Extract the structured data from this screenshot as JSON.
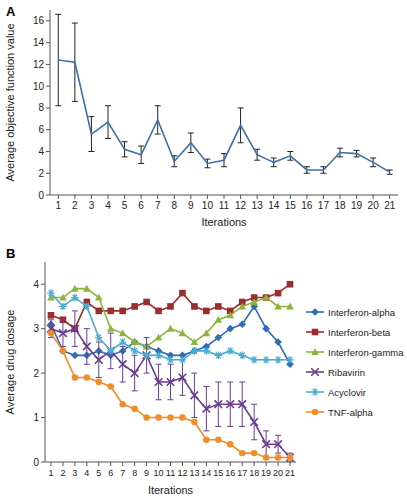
{
  "chart_data": [
    {
      "type": "line",
      "title": "A",
      "x_label": "Iterations",
      "y_label": "Average objective function value",
      "x": [
        1,
        2,
        3,
        4,
        5,
        6,
        7,
        8,
        9,
        10,
        11,
        12,
        13,
        14,
        15,
        16,
        17,
        18,
        19,
        20,
        21
      ],
      "values": [
        12.4,
        12.2,
        5.6,
        6.7,
        4.2,
        3.7,
        6.9,
        3.1,
        4.8,
        2.9,
        3.2,
        6.4,
        3.7,
        3.0,
        3.6,
        2.3,
        2.3,
        3.9,
        3.8,
        3.0,
        2.1
      ],
      "errors": [
        4.2,
        3.6,
        1.6,
        1.5,
        0.7,
        0.8,
        1.3,
        0.5,
        0.9,
        0.4,
        0.6,
        1.6,
        0.5,
        0.4,
        0.4,
        0.3,
        0.3,
        0.4,
        0.3,
        0.4,
        0.2
      ],
      "color": "#3a6fb0",
      "xlim": [
        0.5,
        21.5
      ],
      "xticks": [
        1,
        2,
        3,
        4,
        5,
        6,
        7,
        8,
        9,
        10,
        11,
        12,
        13,
        14,
        15,
        16,
        17,
        18,
        19,
        20,
        21
      ],
      "ylim": [
        0,
        17
      ],
      "yticks": [
        0,
        2,
        4,
        6,
        8,
        10,
        12,
        14,
        16
      ],
      "grid": false
    },
    {
      "type": "line",
      "title": "B",
      "x_label": "Iterations",
      "y_label": "Average drug dosage",
      "x": [
        1,
        2,
        3,
        4,
        5,
        6,
        7,
        8,
        9,
        10,
        11,
        12,
        13,
        14,
        15,
        16,
        17,
        18,
        19,
        20,
        21
      ],
      "series": [
        {
          "name": "Interferon-alpha",
          "color": "#2e6db4",
          "marker": "diamond",
          "values": [
            3.1,
            2.5,
            2.4,
            2.4,
            2.5,
            2.4,
            2.5,
            2.7,
            2.6,
            2.5,
            2.4,
            2.4,
            2.5,
            2.6,
            2.8,
            3.0,
            3.1,
            3.5,
            3.0,
            2.7,
            2.2
          ]
        },
        {
          "name": "Interferon-beta",
          "color": "#9b2d2d",
          "marker": "square",
          "values": [
            3.3,
            3.2,
            3.0,
            3.6,
            3.4,
            3.4,
            3.4,
            3.5,
            3.6,
            3.4,
            3.5,
            3.8,
            3.5,
            3.4,
            3.5,
            3.4,
            3.6,
            3.7,
            3.7,
            3.8,
            4.0
          ]
        },
        {
          "name": "Interferon-gamma",
          "color": "#8db43c",
          "marker": "triangle",
          "values": [
            3.7,
            3.7,
            3.9,
            3.9,
            3.7,
            3.0,
            2.9,
            2.7,
            2.6,
            2.8,
            3.0,
            2.9,
            2.7,
            2.9,
            3.2,
            3.3,
            3.5,
            3.6,
            3.7,
            3.5,
            3.5
          ]
        },
        {
          "name": "Ribavirin",
          "color": "#6a3d8f",
          "marker": "x",
          "values": [
            3.0,
            2.9,
            3.0,
            2.6,
            2.3,
            2.5,
            2.2,
            2.0,
            2.4,
            1.8,
            1.8,
            1.9,
            1.5,
            1.2,
            1.3,
            1.3,
            1.3,
            0.9,
            0.4,
            0.4,
            0.1
          ],
          "errors": [
            0.2,
            0.3,
            0.4,
            0.4,
            0.4,
            0.4,
            0.4,
            0.4,
            0.4,
            0.4,
            0.4,
            0.4,
            0.5,
            0.5,
            0.5,
            0.5,
            0.5,
            0.4,
            0.3,
            0.2,
            0.1
          ]
        },
        {
          "name": "Acyclovir",
          "color": "#4aaed2",
          "marker": "star",
          "values": [
            3.8,
            3.5,
            3.7,
            3.5,
            2.8,
            2.5,
            2.7,
            2.5,
            2.4,
            2.4,
            2.3,
            2.3,
            2.5,
            2.5,
            2.4,
            2.5,
            2.4,
            2.3,
            2.3,
            2.3,
            2.3
          ]
        },
        {
          "name": "TNF-alpha",
          "color": "#f28c28",
          "marker": "circle",
          "values": [
            2.9,
            2.5,
            1.9,
            1.9,
            1.8,
            1.7,
            1.3,
            1.2,
            1.0,
            1.0,
            1.0,
            1.0,
            0.9,
            0.5,
            0.5,
            0.4,
            0.2,
            0.2,
            0.1,
            0.1,
            0.1
          ]
        }
      ],
      "xlim": [
        0.5,
        21.5
      ],
      "xticks": [
        1,
        2,
        3,
        4,
        5,
        6,
        7,
        8,
        9,
        10,
        11,
        12,
        13,
        14,
        15,
        16,
        17,
        18,
        19,
        20,
        21
      ],
      "ylim": [
        0,
        4.5
      ],
      "yticks": [
        0,
        1,
        2,
        3,
        4
      ],
      "grid": false,
      "legend": "right"
    }
  ]
}
